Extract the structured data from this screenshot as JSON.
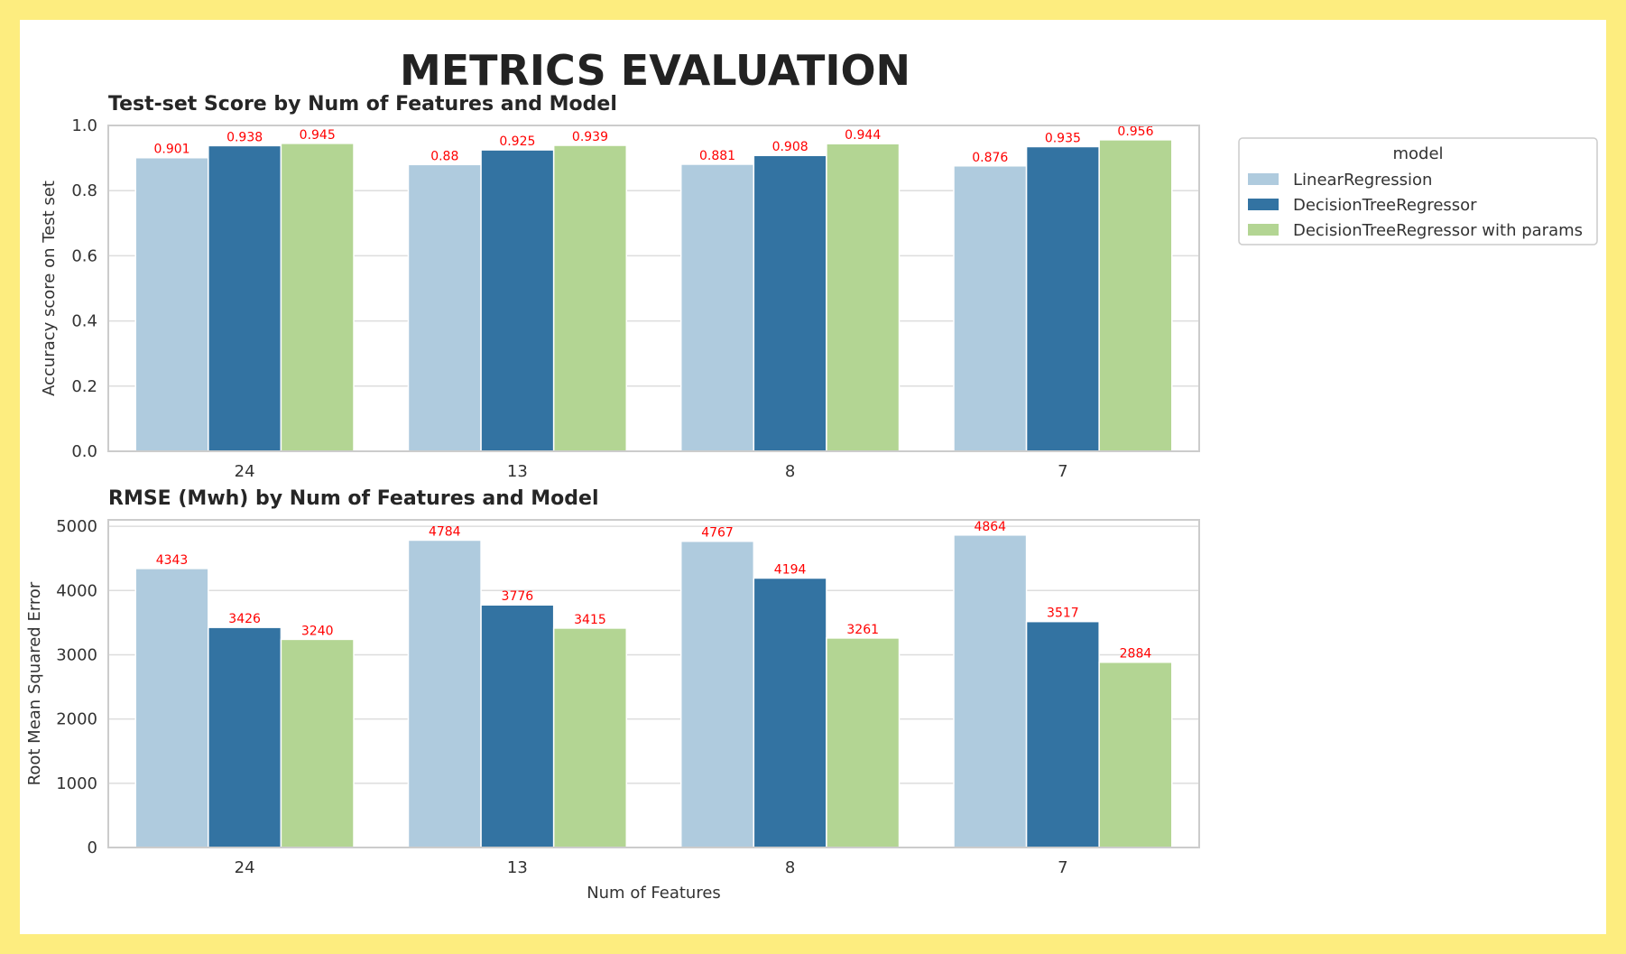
{
  "title": "METRICS EVALUATION",
  "colors": {
    "background_border": "#fded7f",
    "page": "#ffffff",
    "grid": "#dddddd",
    "axes_edge": "#cccccc",
    "data_label": "#ff0000"
  },
  "legend": {
    "title": "model",
    "position": "right of top chart",
    "items": [
      {
        "label": "LinearRegression",
        "color": "#afcbde"
      },
      {
        "label": "DecisionTreeRegressor",
        "color": "#3373a2"
      },
      {
        "label": "DecisionTreeRegressor with params",
        "color": "#b3d593"
      }
    ]
  },
  "chart_data": [
    {
      "type": "bar",
      "title": "Test-set Score by Num of Features and Model",
      "xlabel": "",
      "ylabel": "Accuracy score on Test set",
      "categories": [
        "24",
        "13",
        "8",
        "7"
      ],
      "ylim": [
        0,
        1.0
      ],
      "yticks": [
        "0.0",
        "0.2",
        "0.4",
        "0.6",
        "0.8",
        "1.0"
      ],
      "ytick_values": [
        0,
        0.2,
        0.4,
        0.6,
        0.8,
        1.0
      ],
      "grid": true,
      "series": [
        {
          "name": "LinearRegression",
          "values": [
            0.901,
            0.88,
            0.881,
            0.876
          ],
          "labels": [
            "0.901",
            "0.88",
            "0.881",
            "0.876"
          ]
        },
        {
          "name": "DecisionTreeRegressor",
          "values": [
            0.938,
            0.925,
            0.908,
            0.935
          ],
          "labels": [
            "0.938",
            "0.925",
            "0.908",
            "0.935"
          ]
        },
        {
          "name": "DecisionTreeRegressor with params",
          "values": [
            0.945,
            0.939,
            0.944,
            0.956
          ],
          "labels": [
            "0.945",
            "0.939",
            "0.944",
            "0.956"
          ]
        }
      ]
    },
    {
      "type": "bar",
      "title": "RMSE (Mwh) by Num of Features and Model",
      "xlabel": "Num of Features",
      "ylabel": "Root Mean Squared Error",
      "categories": [
        "24",
        "13",
        "8",
        "7"
      ],
      "ylim": [
        0,
        5100
      ],
      "yticks": [
        "0",
        "1000",
        "2000",
        "3000",
        "4000",
        "5000"
      ],
      "ytick_values": [
        0,
        1000,
        2000,
        3000,
        4000,
        5000
      ],
      "grid": true,
      "series": [
        {
          "name": "LinearRegression",
          "values": [
            4343,
            4784,
            4767,
            4864
          ],
          "labels": [
            "4343",
            "4784",
            "4767",
            "4864"
          ]
        },
        {
          "name": "DecisionTreeRegressor",
          "values": [
            3426,
            3776,
            4194,
            3517
          ],
          "labels": [
            "3426",
            "3776",
            "4194",
            "3517"
          ]
        },
        {
          "name": "DecisionTreeRegressor with params",
          "values": [
            3240,
            3415,
            3261,
            2884
          ],
          "labels": [
            "3240",
            "3415",
            "3261",
            "2884"
          ]
        }
      ]
    }
  ]
}
